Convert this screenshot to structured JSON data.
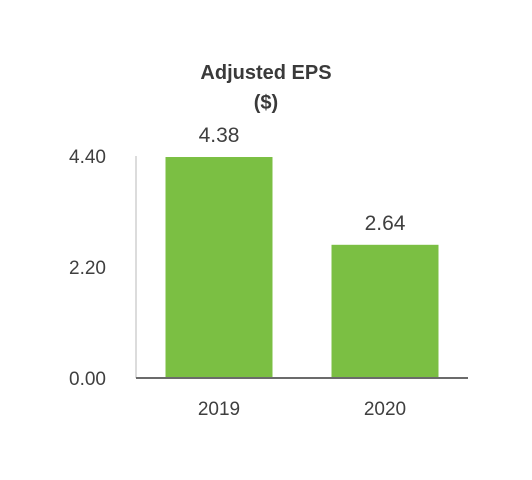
{
  "chart_data": {
    "type": "bar",
    "title": "Adjusted EPS",
    "subtitle": "($)",
    "categories": [
      "2019",
      "2020"
    ],
    "values": [
      4.38,
      2.64
    ],
    "data_labels": [
      "4.38",
      "2.64"
    ],
    "yticks": [
      0.0,
      2.2,
      4.4
    ],
    "ytick_labels": [
      "0.00",
      "2.20",
      "4.40"
    ],
    "ylim": [
      0,
      4.4
    ],
    "xlabel": "",
    "ylabel": "",
    "grid": false,
    "bar_color": "#7bbf43",
    "axis_color": "#6b6b6b"
  }
}
